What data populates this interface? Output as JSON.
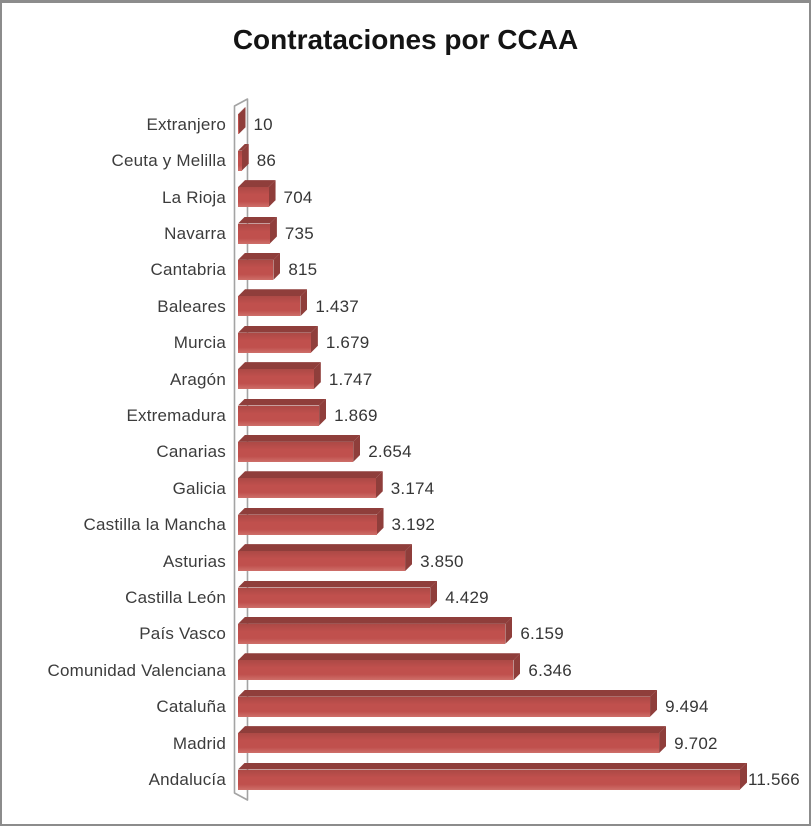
{
  "frame": {
    "background": "#FFFFFF",
    "border_color": "#8C8C8C"
  },
  "chart_data": {
    "type": "bar",
    "orientation": "horizontal",
    "style": "3d-bevel-excel",
    "title": "Contrataciones por CCAA",
    "categories_order": "top-to-bottom",
    "categories": [
      "Extranjero",
      "Ceuta y Melilla",
      "La Rioja",
      "Navarra",
      "Cantabria",
      "Baleares",
      "Murcia",
      "Aragón",
      "Extremadura",
      "Canarias",
      "Galicia",
      "Castilla la Mancha",
      "Asturias",
      "Castilla León",
      "País Vasco",
      "Comunidad Valenciana",
      "Cataluña",
      "Madrid",
      "Andalucía"
    ],
    "values": [
      10,
      86,
      704,
      735,
      815,
      1437,
      1679,
      1747,
      1869,
      2654,
      3174,
      3192,
      3850,
      4429,
      6159,
      6346,
      9494,
      9702,
      11566
    ],
    "value_labels": [
      "10",
      "86",
      "704",
      "735",
      "815",
      "1.437",
      "1.679",
      "1.747",
      "1.869",
      "2.654",
      "3.174",
      "3.192",
      "3.850",
      "4.429",
      "6.159",
      "6.346",
      "9.494",
      "9.702",
      "11.566"
    ],
    "xlim": [
      0,
      11566
    ],
    "grid": false,
    "legend": false,
    "value_axis_visible": false,
    "data_labels": "outside-end",
    "colors": {
      "bar_face": "#C0504D",
      "bar_face_dark": "#AC4945",
      "bar_face_light": "#CE6F69",
      "bar_side": "#8F3E3B",
      "wall_stroke": "#A3A3A3",
      "wall_fill": "#FEFEFE",
      "label_text": "#3C3C3C",
      "value_text": "#363636"
    }
  }
}
